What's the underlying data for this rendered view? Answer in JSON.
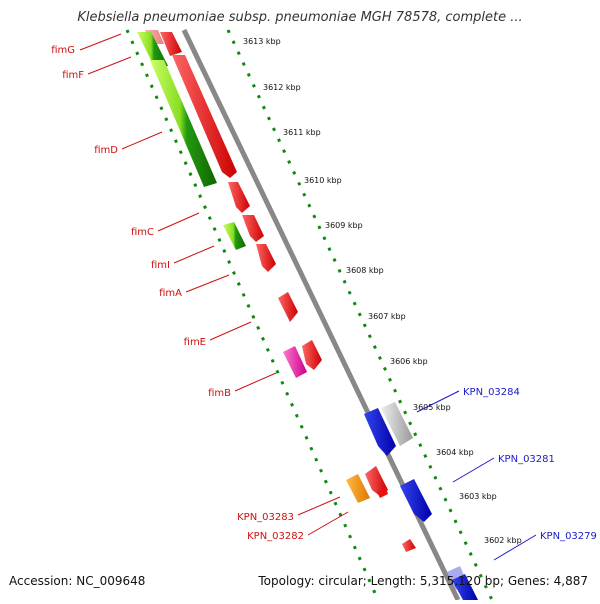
{
  "title": "Klebsiella pneumoniae subsp. pneumoniae MGH 78578, complete ...",
  "footer": {
    "accession": "Accession: NC_009648",
    "topology": "Topology: circular; Length: 5,315,120 bp; Genes: 4,887"
  },
  "ruler_ticks": [
    "3613 kbp",
    "3612 kbp",
    "3611 kbp",
    "3610 kbp",
    "3609 kbp",
    "3608 kbp",
    "3607 kbp",
    "3606 kbp",
    "3605 kbp",
    "3604 kbp",
    "3603 kbp",
    "3602 kbp"
  ],
  "left_labels": [
    "fimG",
    "fimF",
    "fimD",
    "fimC",
    "fimI",
    "fimA",
    "fimE",
    "fimB",
    "KPN_03283",
    "KPN_03282"
  ],
  "right_labels": [
    "KPN_03284",
    "KPN_03281",
    "KPN_03279"
  ],
  "colors": {
    "left_label": "#cc1111",
    "right_label": "#1a1acc",
    "gene_red": "#ee1111",
    "gene_blue": "#1a1acc",
    "gene_green": "#33aa11",
    "gene_lightgreen": "#aaee33",
    "gene_pink": "#ee22aa",
    "gene_orange": "#ff9900",
    "gene_gray": "#bbbbbb",
    "backbone": "#888888",
    "dotted": "#118811"
  }
}
